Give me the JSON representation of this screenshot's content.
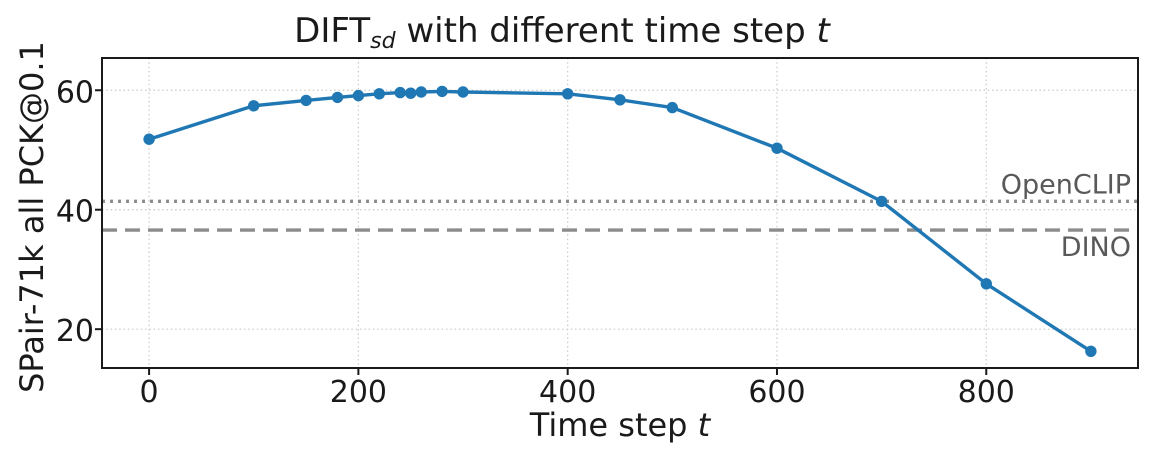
{
  "chart_data": {
    "type": "line",
    "title": {
      "prefix": "DIFT",
      "subscript": "sd",
      "middle": " with different time step ",
      "variable": "t"
    },
    "xlabel": {
      "text": "Time step ",
      "variable": "t"
    },
    "ylabel": "SPair-71k all PCK@0.1",
    "xlim": [
      -45,
      945
    ],
    "ylim": [
      13.5,
      65.4
    ],
    "xticks": [
      0,
      200,
      400,
      600,
      800
    ],
    "yticks": [
      20,
      40,
      60
    ],
    "grid": true,
    "legend_position": "none",
    "series": [
      {
        "name": "DIFT_sd",
        "color": "#1f77b4",
        "marker": "circle",
        "x": [
          0,
          100,
          150,
          180,
          200,
          220,
          240,
          250,
          260,
          280,
          300,
          400,
          450,
          500,
          600,
          700,
          800,
          900
        ],
        "y": [
          51.8,
          57.4,
          58.3,
          58.8,
          59.1,
          59.4,
          59.6,
          59.5,
          59.7,
          59.8,
          59.7,
          59.4,
          58.4,
          57.1,
          50.3,
          41.4,
          27.6,
          16.3
        ]
      }
    ],
    "reference_lines": [
      {
        "label": "OpenCLIP",
        "value": 41.4,
        "style": "dotted",
        "color": "#8c8c8c",
        "label_color": "#595959",
        "label_side": "above"
      },
      {
        "label": "DINO",
        "value": 36.6,
        "style": "dashed",
        "color": "#8c8c8c",
        "label_color": "#595959",
        "label_side": "below"
      }
    ],
    "axis_color": "#1a1a1a",
    "grid_color": "#c9c9c9",
    "background": "#ffffff"
  }
}
